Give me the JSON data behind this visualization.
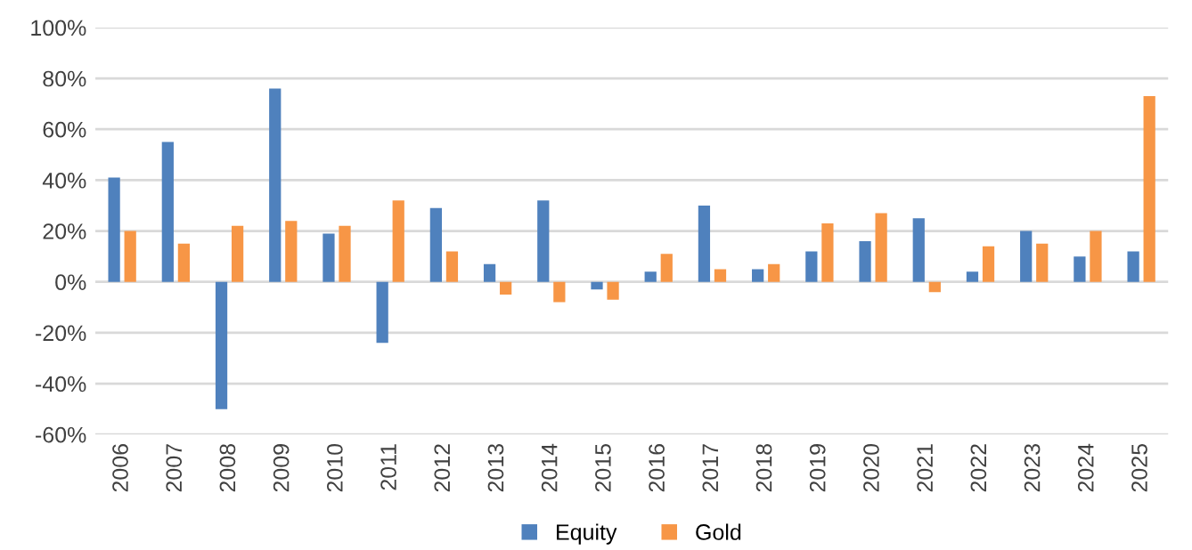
{
  "chart_data": {
    "type": "bar",
    "categories": [
      "2006",
      "2007",
      "2008",
      "2009",
      "2010",
      "2011",
      "2012",
      "2013",
      "2014",
      "2015",
      "2016",
      "2017",
      "2018",
      "2019",
      "2020",
      "2021",
      "2022",
      "2023",
      "2024",
      "2025"
    ],
    "series": [
      {
        "name": "Equity",
        "color": "#4f81bd",
        "values": [
          41,
          55,
          -50,
          76,
          19,
          -24,
          29,
          7,
          32,
          -3,
          4,
          30,
          5,
          12,
          16,
          25,
          4,
          20,
          10,
          12
        ]
      },
      {
        "name": "Gold",
        "color": "#f79646",
        "values": [
          20,
          15,
          22,
          24,
          22,
          32,
          12,
          -5,
          -8,
          -7,
          11,
          5,
          7,
          23,
          27,
          -4,
          14,
          15,
          20,
          73
        ]
      }
    ],
    "ylim": [
      -60,
      100
    ],
    "yticks": [
      {
        "value": -60,
        "label": "-60%"
      },
      {
        "value": -40,
        "label": "-40%"
      },
      {
        "value": -20,
        "label": "-20%"
      },
      {
        "value": 0,
        "label": "0%"
      },
      {
        "value": 20,
        "label": "20%"
      },
      {
        "value": 40,
        "label": "40%"
      },
      {
        "value": 60,
        "label": "60%"
      },
      {
        "value": 80,
        "label": "80%"
      },
      {
        "value": 100,
        "label": "100%"
      }
    ],
    "grid": "y",
    "legend": "bottom"
  }
}
